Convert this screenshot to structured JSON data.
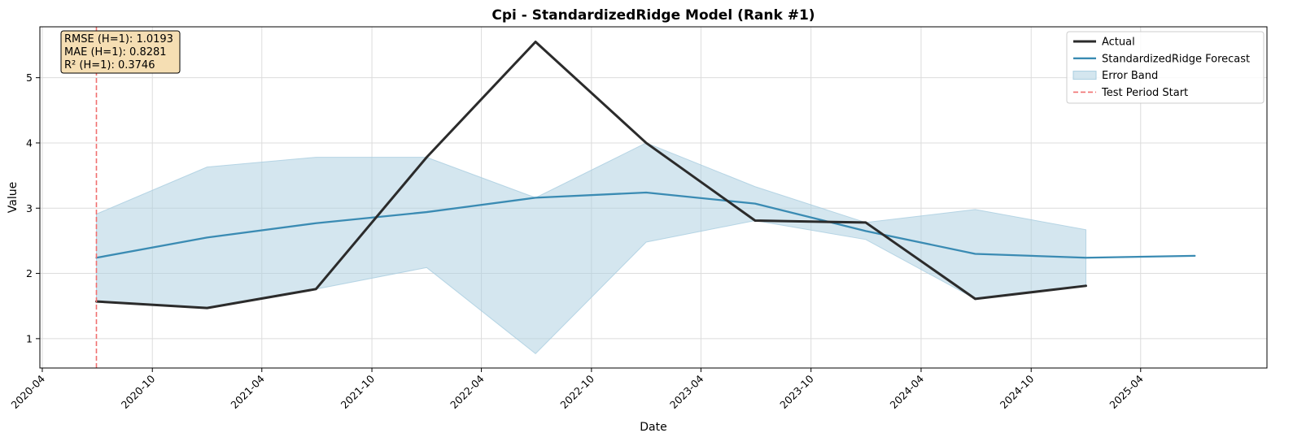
{
  "chart_data": {
    "type": "line",
    "title": "Cpi - StandardizedRidge Model (Rank #1)",
    "xlabel": "Date",
    "ylabel": "Value",
    "x_ticks": [
      "2020-04",
      "2020-10",
      "2021-04",
      "2021-10",
      "2022-04",
      "2022-10",
      "2023-04",
      "2023-10",
      "2024-04",
      "2024-10",
      "2025-04"
    ],
    "y_ticks": [
      1,
      2,
      3,
      4,
      5
    ],
    "xlim": [
      "2020-03-28",
      "2025-10-28"
    ],
    "ylim": [
      0.55,
      5.78
    ],
    "grid": true,
    "legend_position": "top-right",
    "series": [
      {
        "name": "Actual",
        "color": "#2b2b2b",
        "x": [
          "2020-06-30",
          "2020-12-31",
          "2021-06-30",
          "2021-12-31",
          "2022-06-30",
          "2022-12-31",
          "2023-06-30",
          "2023-12-31",
          "2024-06-30",
          "2024-12-31"
        ],
        "values": [
          1.57,
          1.47,
          1.76,
          3.78,
          5.55,
          4.0,
          2.81,
          2.78,
          1.61,
          1.81
        ]
      },
      {
        "name": "StandardizedRidge Forecast",
        "color": "#3a8bb3",
        "x": [
          "2020-06-30",
          "2020-12-31",
          "2021-06-30",
          "2021-12-31",
          "2022-06-30",
          "2022-12-31",
          "2023-06-30",
          "2023-12-31",
          "2024-06-30",
          "2024-12-31",
          "2025-06-30"
        ],
        "values": [
          2.24,
          2.55,
          2.77,
          2.94,
          3.16,
          3.24,
          3.07,
          2.65,
          2.3,
          2.24,
          2.27
        ]
      }
    ],
    "error_band": {
      "name": "Error Band",
      "color": "#a9cde0",
      "x": [
        "2020-06-30",
        "2020-12-31",
        "2021-06-30",
        "2021-12-31",
        "2022-06-30",
        "2022-12-31",
        "2023-06-30",
        "2023-12-31",
        "2024-06-30",
        "2024-12-31"
      ],
      "upper": [
        2.91,
        3.63,
        3.78,
        3.78,
        3.16,
        4.0,
        3.33,
        2.78,
        2.98,
        2.67
      ],
      "lower": [
        1.57,
        1.47,
        1.76,
        2.09,
        0.77,
        2.48,
        2.81,
        2.52,
        1.61,
        1.81
      ]
    },
    "vline": {
      "name": "Test Period Start",
      "x": "2020-06-30",
      "color": "#f07070"
    },
    "metrics": [
      "RMSE (H=1): 1.0193",
      "MAE (H=1): 0.8281",
      "R² (H=1): 0.3746"
    ]
  }
}
